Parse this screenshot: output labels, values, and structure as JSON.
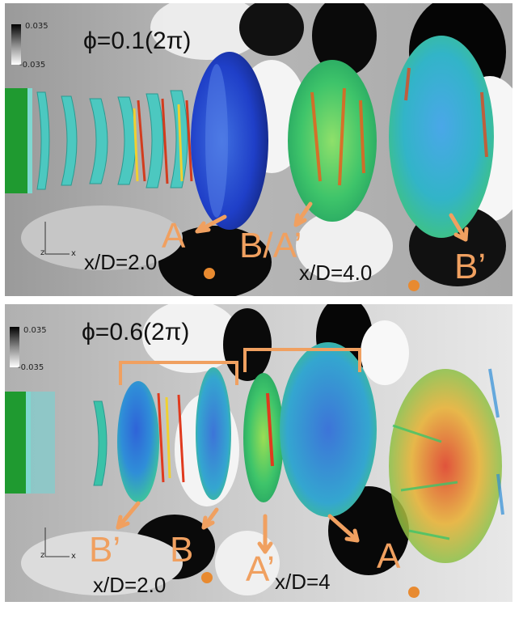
{
  "top": {
    "phase_label": "ϕ=0.1(2π)",
    "colorbar": {
      "max": "0.035",
      "min": "-0.035"
    },
    "locations": [
      "x/D=2.0",
      "x/D=4.0"
    ],
    "labels": {
      "a": "A",
      "ba": "B/A’",
      "bprime": "B’"
    }
  },
  "bottom": {
    "phase_label": "ϕ=0.6(2π)",
    "colorbar": {
      "max": "0.035",
      "min": "-0.035"
    },
    "locations": [
      "x/D=2.0",
      "x/D=4"
    ],
    "labels": {
      "bprime": "B’",
      "b": "B",
      "aprime": "A’",
      "a": "A"
    }
  },
  "axes_glyph": {
    "z": "z",
    "x": "x"
  },
  "colors": {
    "annotation": "#f0a060",
    "marker": "#e88a30"
  }
}
